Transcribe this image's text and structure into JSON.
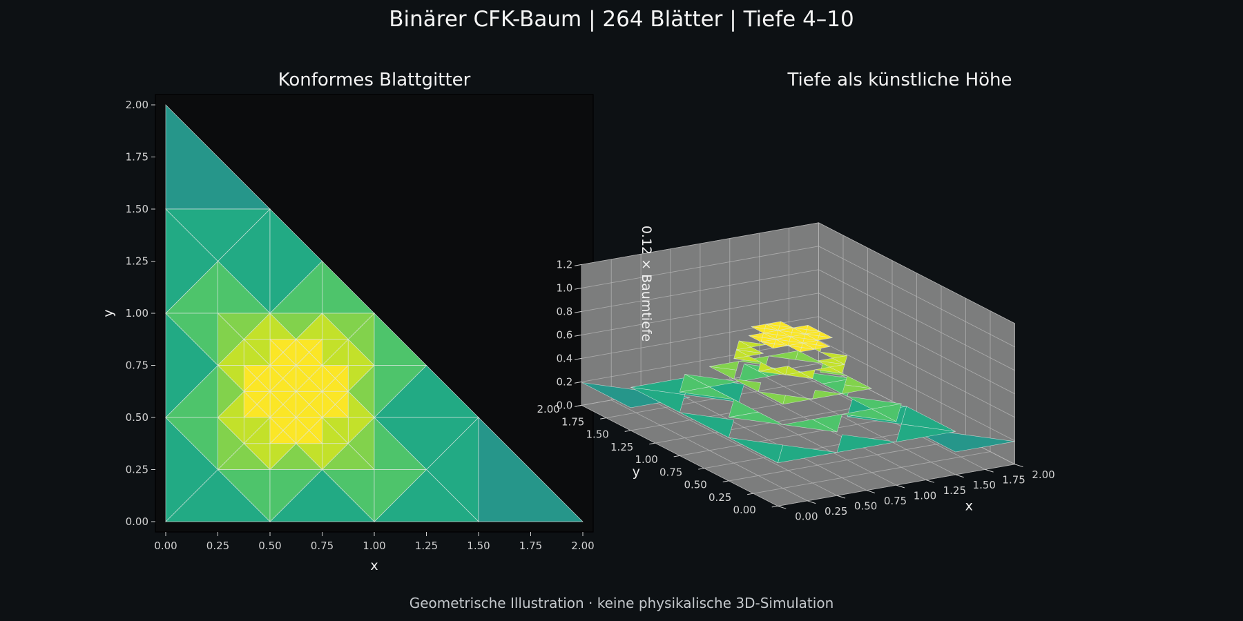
{
  "suptitle": "Binärer CFK-Baum | 264 Blätter | Tiefe 4–10",
  "footer": "Geometrische Illustration · keine physikalische 3D-Simulation",
  "colors": {
    "background": "#0d1114",
    "axes_face_2d": "#0b0c0d",
    "pane_3d": "#7c7d7d",
    "mesh_edge": "#dfe8e4",
    "depth_4": "#2e7091",
    "depth_5": "#26968a",
    "depth_6": "#22aa84",
    "depth_7": "#4ec46b",
    "depth_8": "#82d24c",
    "depth_9": "#c3e12a",
    "depth_10": "#fbe626"
  },
  "chart_data": [
    {
      "type": "mesh",
      "title": "Konformes Blattgitter",
      "xlabel": "x",
      "ylabel": "y",
      "xlim": [
        0,
        2
      ],
      "ylim": [
        0,
        2
      ],
      "xticks": [
        "0.00",
        "0.25",
        "0.50",
        "0.75",
        "1.00",
        "1.25",
        "1.50",
        "1.75",
        "2.00"
      ],
      "yticks": [
        "0.00",
        "0.25",
        "0.50",
        "0.75",
        "1.00",
        "1.25",
        "1.50",
        "1.75",
        "2.00"
      ],
      "domain": [
        [
          0,
          0
        ],
        [
          2,
          0
        ],
        [
          0,
          2
        ]
      ],
      "leaf_count": 264,
      "depth_range": [
        4,
        10
      ],
      "refinement_center": [
        0.625,
        0.625
      ]
    },
    {
      "type": "surface3d",
      "title": "Tiefe als künstliche Höhe",
      "xlabel": "x",
      "ylabel": "y",
      "zlabel": "0.12 × Baumtiefe",
      "xlim": [
        0,
        2
      ],
      "ylim": [
        0,
        2
      ],
      "zlim": [
        0,
        1.2
      ],
      "xticks": [
        "0.00",
        "0.25",
        "0.50",
        "0.75",
        "1.00",
        "1.25",
        "1.50",
        "1.75",
        "2.00"
      ],
      "yticks": [
        "0.00",
        "0.25",
        "0.50",
        "0.75",
        "1.00",
        "1.25",
        "1.50",
        "1.75",
        "2.00"
      ],
      "zticks": [
        "0.0",
        "0.2",
        "0.4",
        "0.6",
        "0.8",
        "1.0",
        "1.2"
      ],
      "height_scale": 0.12
    }
  ]
}
